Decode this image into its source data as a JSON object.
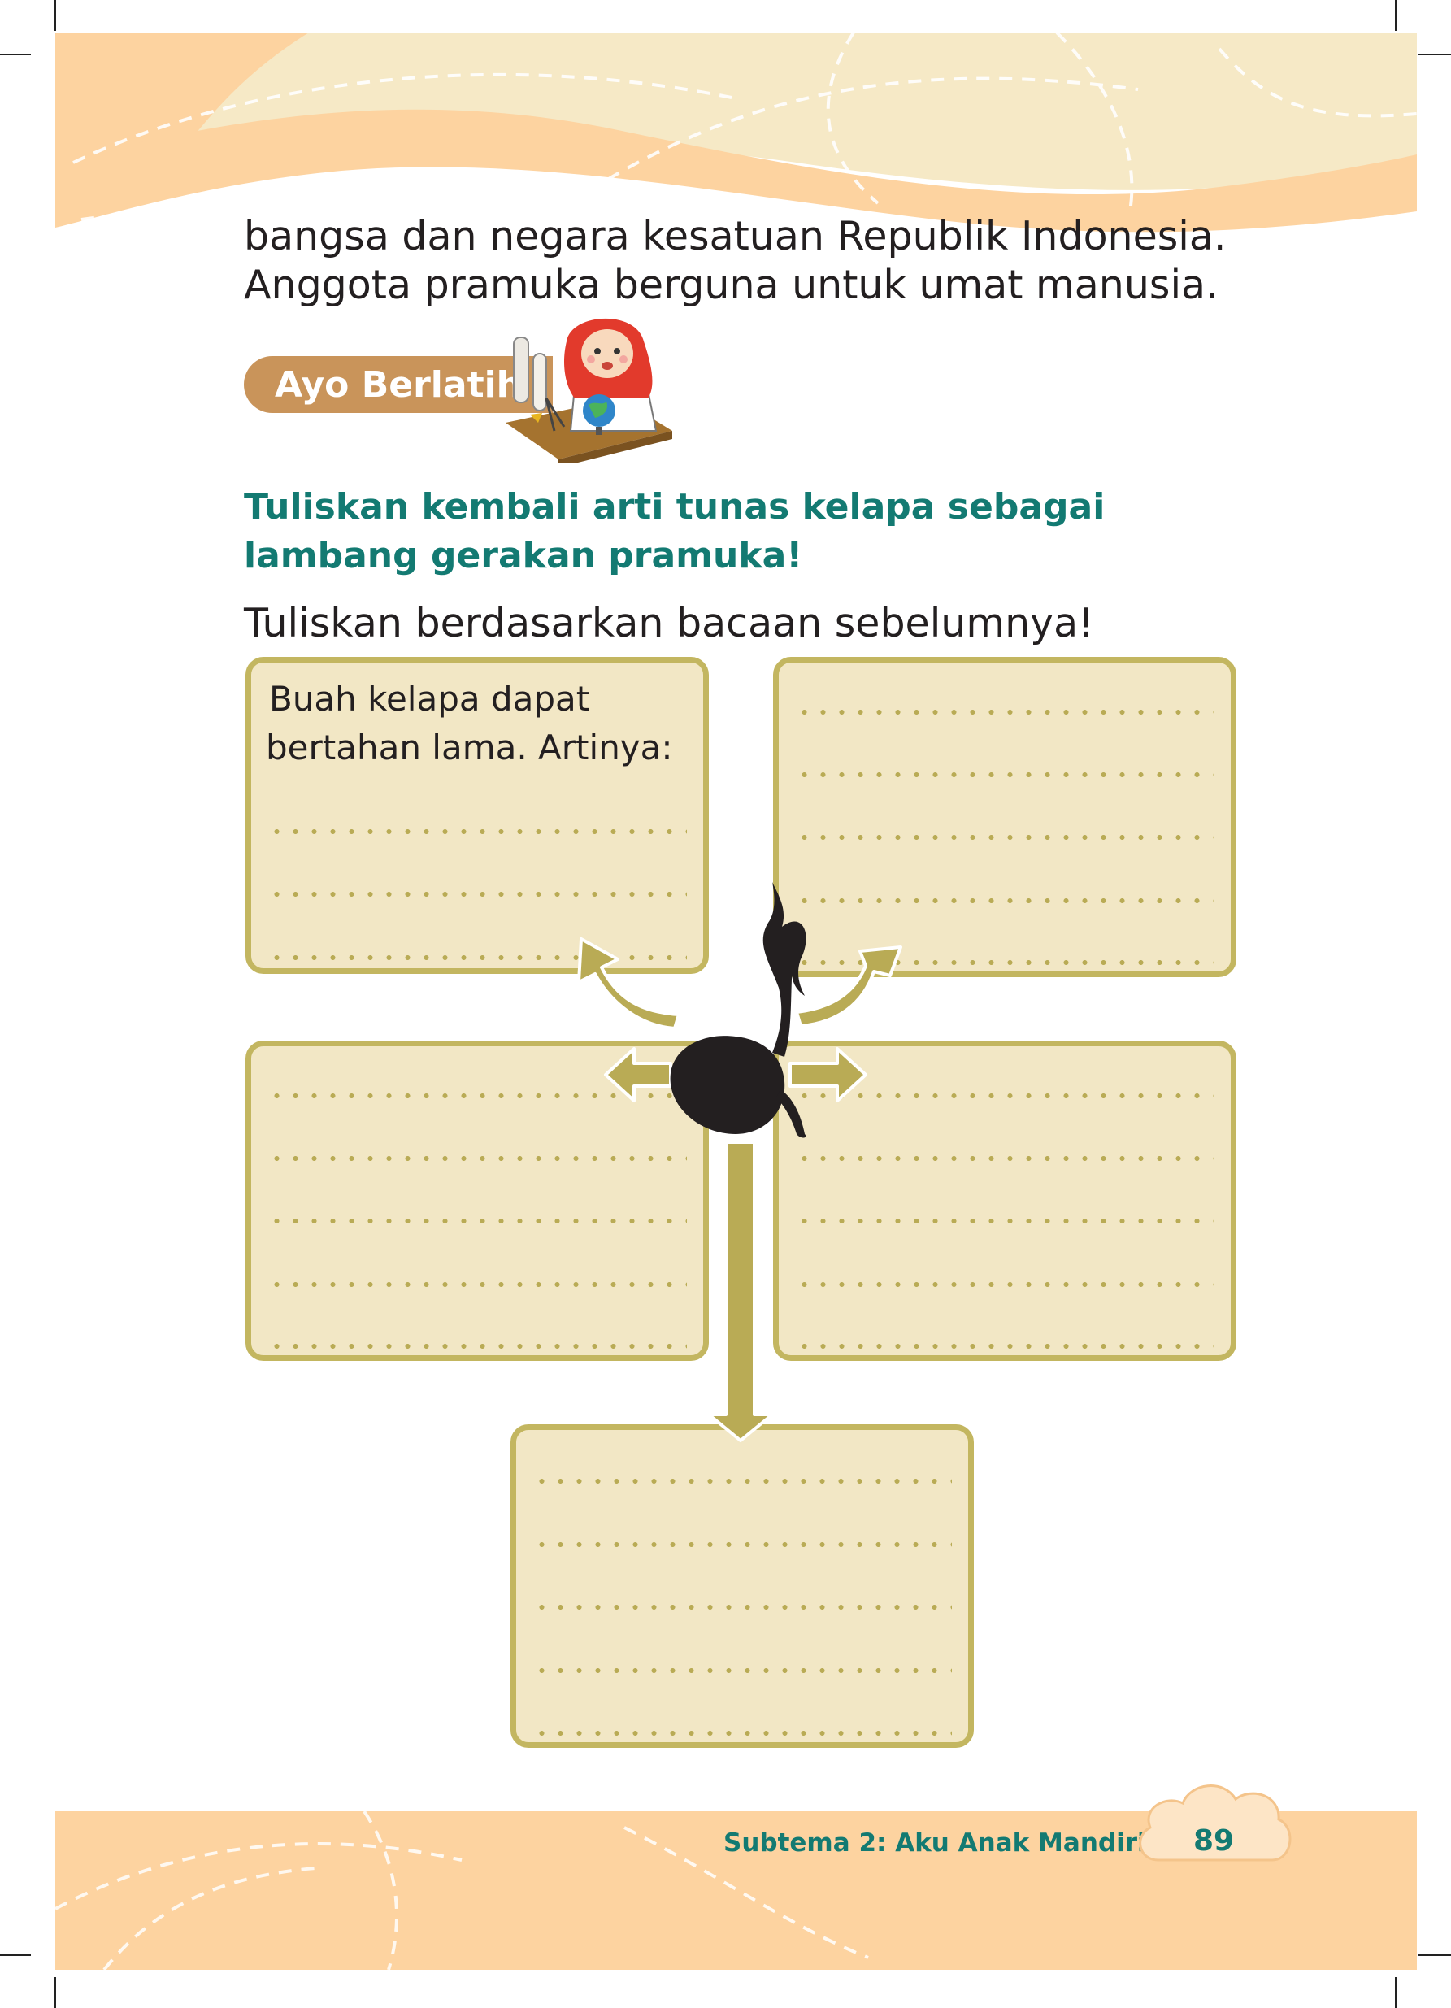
{
  "body_text": {
    "line1": "bangsa dan negara kesatuan Republik Indonesia.",
    "line2": "Anggota pramuka berguna untuk umat manusia."
  },
  "section_badge": {
    "label": "Ayo Berlatih"
  },
  "instructions": {
    "heading_line1": "Tuliskan kembali arti tunas kelapa sebagai",
    "heading_line2": "lambang gerakan pramuka!",
    "subtext": "Tuliskan berdasarkan bacaan sebelumnya!"
  },
  "boxes": {
    "top_left": {
      "prompt_line1": "Buah kelapa dapat",
      "prompt_line2": "bertahan lama. Artinya:"
    }
  },
  "footer": {
    "subtheme": "Subtema 2: Aku Anak Mandiri",
    "page_number": "89"
  },
  "colors": {
    "teal": "#137a72",
    "box_fill": "#f2e7c5",
    "box_border": "#c3b660",
    "badge": "#c9945a",
    "footer_band": "#fdd3a0"
  },
  "icons": [
    "girl-with-globe-illustration",
    "tunas-kelapa-emblem-icon",
    "arrow-icon"
  ]
}
